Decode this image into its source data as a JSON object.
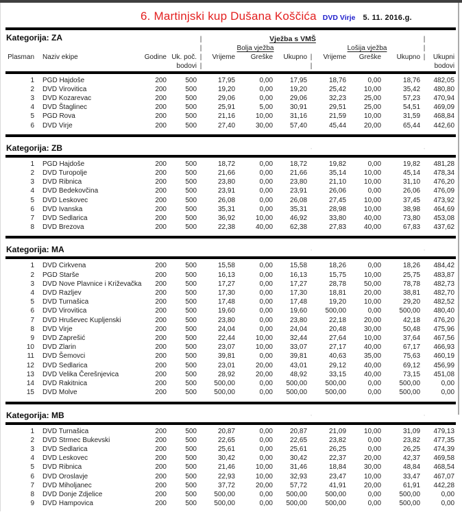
{
  "header": {
    "title": "6. Martinjski kup Dušana Koščića",
    "organization": "DVD Virje",
    "date": "5. 11. 2016.g.",
    "title_color": "#e32020",
    "organization_color": "#2222cc"
  },
  "table_header": {
    "plasman": "Plasman",
    "naziv_ekipe": "Naziv ekipe",
    "godine": "Godine",
    "uk_poc_line1": "Uk. poč.",
    "uk_poc_line2": "bodovi",
    "group_title": "Vježba s VMŠ",
    "bolja_vjezba": "Bolja vježba",
    "losija_vjezba": "Lošija vježba",
    "vrijeme": "Vrijeme",
    "greske": "Greške",
    "ukupno": "Ukupno",
    "ukupni_line1": "Ukupni",
    "ukupni_line2": "bodovi",
    "separator": "|",
    "tick": "'"
  },
  "sections": [
    {
      "category": "ZA",
      "label": "Kategorija: ZA",
      "rows": [
        [
          "1",
          "PGD Hajdoše",
          "200",
          "500",
          "17,95",
          "0,00",
          "17,95",
          "18,76",
          "0,00",
          "18,76",
          "482,05"
        ],
        [
          "2",
          "DVD Virovitica",
          "200",
          "500",
          "19,20",
          "0,00",
          "19,20",
          "25,42",
          "10,00",
          "35,42",
          "480,80"
        ],
        [
          "3",
          "DVD Kozarevac",
          "200",
          "500",
          "29,06",
          "0,00",
          "29,06",
          "32,23",
          "25,00",
          "57,23",
          "470,94"
        ],
        [
          "4",
          "DVD Štaglinec",
          "200",
          "500",
          "25,91",
          "5,00",
          "30,91",
          "29,51",
          "25,00",
          "54,51",
          "469,09"
        ],
        [
          "5",
          "PGD Rova",
          "200",
          "500",
          "21,16",
          "10,00",
          "31,16",
          "21,59",
          "10,00",
          "31,59",
          "468,84"
        ],
        [
          "6",
          "DVD Virje",
          "200",
          "500",
          "27,40",
          "30,00",
          "57,40",
          "45,44",
          "20,00",
          "65,44",
          "442,60"
        ]
      ]
    },
    {
      "category": "ZB",
      "label": "Kategorija: ZB",
      "rows": [
        [
          "1",
          "PGD Hajdoše",
          "200",
          "500",
          "18,72",
          "0,00",
          "18,72",
          "19,82",
          "0,00",
          "19,82",
          "481,28"
        ],
        [
          "2",
          "DVD Turopolje",
          "200",
          "500",
          "21,66",
          "0,00",
          "21,66",
          "35,14",
          "10,00",
          "45,14",
          "478,34"
        ],
        [
          "3",
          "DVD Ribnica",
          "200",
          "500",
          "23,80",
          "0,00",
          "23,80",
          "21,10",
          "10,00",
          "31,10",
          "476,20"
        ],
        [
          "4",
          "DVD Bedekovčina",
          "200",
          "500",
          "23,91",
          "0,00",
          "23,91",
          "26,06",
          "0,00",
          "26,06",
          "476,09"
        ],
        [
          "5",
          "DVD Leskovec",
          "200",
          "500",
          "26,08",
          "0,00",
          "26,08",
          "27,45",
          "10,00",
          "37,45",
          "473,92"
        ],
        [
          "6",
          "DVD Ivanska",
          "200",
          "500",
          "35,31",
          "0,00",
          "35,31",
          "28,98",
          "10,00",
          "38,98",
          "464,69"
        ],
        [
          "7",
          "DVD Sedlarica",
          "200",
          "500",
          "36,92",
          "10,00",
          "46,92",
          "33,80",
          "40,00",
          "73,80",
          "453,08"
        ],
        [
          "8",
          "DVD Brezova",
          "200",
          "500",
          "22,38",
          "40,00",
          "62,38",
          "27,83",
          "40,00",
          "67,83",
          "437,62"
        ]
      ]
    },
    {
      "category": "MA",
      "label": "Kategorija: MA",
      "rows": [
        [
          "1",
          "DVD Cirkvena",
          "200",
          "500",
          "15,58",
          "0,00",
          "15,58",
          "18,26",
          "0,00",
          "18,26",
          "484,42"
        ],
        [
          "2",
          "PGD Starše",
          "200",
          "500",
          "16,13",
          "0,00",
          "16,13",
          "15,75",
          "10,00",
          "25,75",
          "483,87"
        ],
        [
          "3",
          "DVD Nove Plavnice i Križevačka",
          "200",
          "500",
          "17,27",
          "0,00",
          "17,27",
          "28,78",
          "50,00",
          "78,78",
          "482,73"
        ],
        [
          "4",
          "DVD Razljev",
          "200",
          "500",
          "17,30",
          "0,00",
          "17,30",
          "18,81",
          "20,00",
          "38,81",
          "482,70"
        ],
        [
          "5",
          "DVD Turnašica",
          "200",
          "500",
          "17,48",
          "0,00",
          "17,48",
          "19,20",
          "10,00",
          "29,20",
          "482,52"
        ],
        [
          "6",
          "DVD Virovitica",
          "200",
          "500",
          "19,60",
          "0,00",
          "19,60",
          "500,00",
          "0,00",
          "500,00",
          "480,40"
        ],
        [
          "7",
          "DVD Hruševec Kupljenski",
          "200",
          "500",
          "23,80",
          "0,00",
          "23,80",
          "22,18",
          "20,00",
          "42,18",
          "476,20"
        ],
        [
          "8",
          "DVD Virje",
          "200",
          "500",
          "24,04",
          "0,00",
          "24,04",
          "20,48",
          "30,00",
          "50,48",
          "475,96"
        ],
        [
          "9",
          "DVD Zaprešić",
          "200",
          "500",
          "22,44",
          "10,00",
          "32,44",
          "27,64",
          "10,00",
          "37,64",
          "467,56"
        ],
        [
          "10",
          "DVD Zlarin",
          "200",
          "500",
          "23,07",
          "10,00",
          "33,07",
          "27,17",
          "40,00",
          "67,17",
          "466,93"
        ],
        [
          "11",
          "DVD Šemovci",
          "200",
          "500",
          "39,81",
          "0,00",
          "39,81",
          "40,63",
          "35,00",
          "75,63",
          "460,19"
        ],
        [
          "12",
          "DVD Sedlarica",
          "200",
          "500",
          "23,01",
          "20,00",
          "43,01",
          "29,12",
          "40,00",
          "69,12",
          "456,99"
        ],
        [
          "13",
          "DVD Velika Čerešnjevica",
          "200",
          "500",
          "28,92",
          "20,00",
          "48,92",
          "33,15",
          "40,00",
          "73,15",
          "451,08"
        ],
        [
          "14",
          "DVD Rakitnica",
          "200",
          "500",
          "500,00",
          "0,00",
          "500,00",
          "500,00",
          "0,00",
          "500,00",
          "0,00"
        ],
        [
          "15",
          "DVD Molve",
          "200",
          "500",
          "500,00",
          "0,00",
          "500,00",
          "500,00",
          "0,00",
          "500,00",
          "0,00"
        ]
      ]
    },
    {
      "category": "MB",
      "label": "Kategorija: MB",
      "rows": [
        [
          "1",
          "DVD Turnašica",
          "200",
          "500",
          "20,87",
          "0,00",
          "20,87",
          "21,09",
          "10,00",
          "31,09",
          "479,13"
        ],
        [
          "2",
          "DVD Strmec Bukevski",
          "200",
          "500",
          "22,65",
          "0,00",
          "22,65",
          "23,82",
          "0,00",
          "23,82",
          "477,35"
        ],
        [
          "3",
          "DVD Sedlarica",
          "200",
          "500",
          "25,61",
          "0,00",
          "25,61",
          "26,25",
          "0,00",
          "26,25",
          "474,39"
        ],
        [
          "4",
          "DVD Leskovec",
          "200",
          "500",
          "30,42",
          "0,00",
          "30,42",
          "22,37",
          "20,00",
          "42,37",
          "469,58"
        ],
        [
          "5",
          "DVD Ribnica",
          "200",
          "500",
          "21,46",
          "10,00",
          "31,46",
          "18,84",
          "30,00",
          "48,84",
          "468,54"
        ],
        [
          "6",
          "DVD Oroslavje",
          "200",
          "500",
          "22,93",
          "10,00",
          "32,93",
          "23,47",
          "10,00",
          "33,47",
          "467,07"
        ],
        [
          "7",
          "DVD Miholjanec",
          "200",
          "500",
          "37,72",
          "20,00",
          "57,72",
          "41,91",
          "20,00",
          "61,91",
          "442,28"
        ],
        [
          "8",
          "DVD Donje Zdjelice",
          "200",
          "500",
          "500,00",
          "0,00",
          "500,00",
          "500,00",
          "0,00",
          "500,00",
          "0,00"
        ],
        [
          "9",
          "DVD Hampovica",
          "200",
          "500",
          "500,00",
          "0,00",
          "500,00",
          "500,00",
          "0,00",
          "500,00",
          "0,00"
        ]
      ]
    }
  ]
}
